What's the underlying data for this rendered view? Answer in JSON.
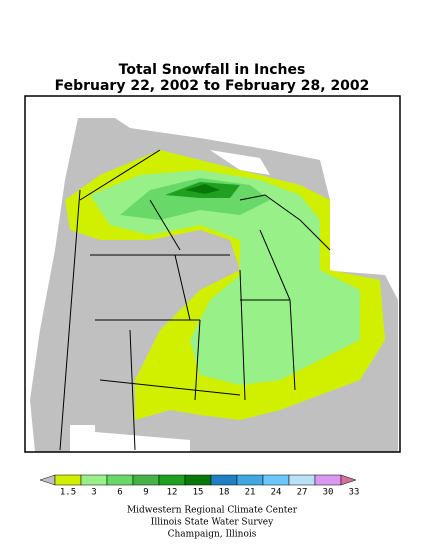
{
  "header": {
    "title": "Total Snowfall in Inches",
    "subtitle": "February 22, 2002 to February 28, 2002"
  },
  "legend": {
    "colors": [
      "#c0c0c0",
      "#d0f000",
      "#98f088",
      "#68d868",
      "#48b048",
      "#20a020",
      "#087808",
      "#2080c0",
      "#40a8e0",
      "#68c8f8",
      "#b8e0f8",
      "#d898f0",
      "#d070a0"
    ],
    "labels": [
      1.5,
      3,
      6,
      9,
      12,
      15,
      18,
      21,
      24,
      27,
      30,
      33
    ]
  },
  "credits": [
    "Midwestern Regional Climate Center",
    "Illinois State Water Survey",
    "Champaign, Illinois"
  ]
}
